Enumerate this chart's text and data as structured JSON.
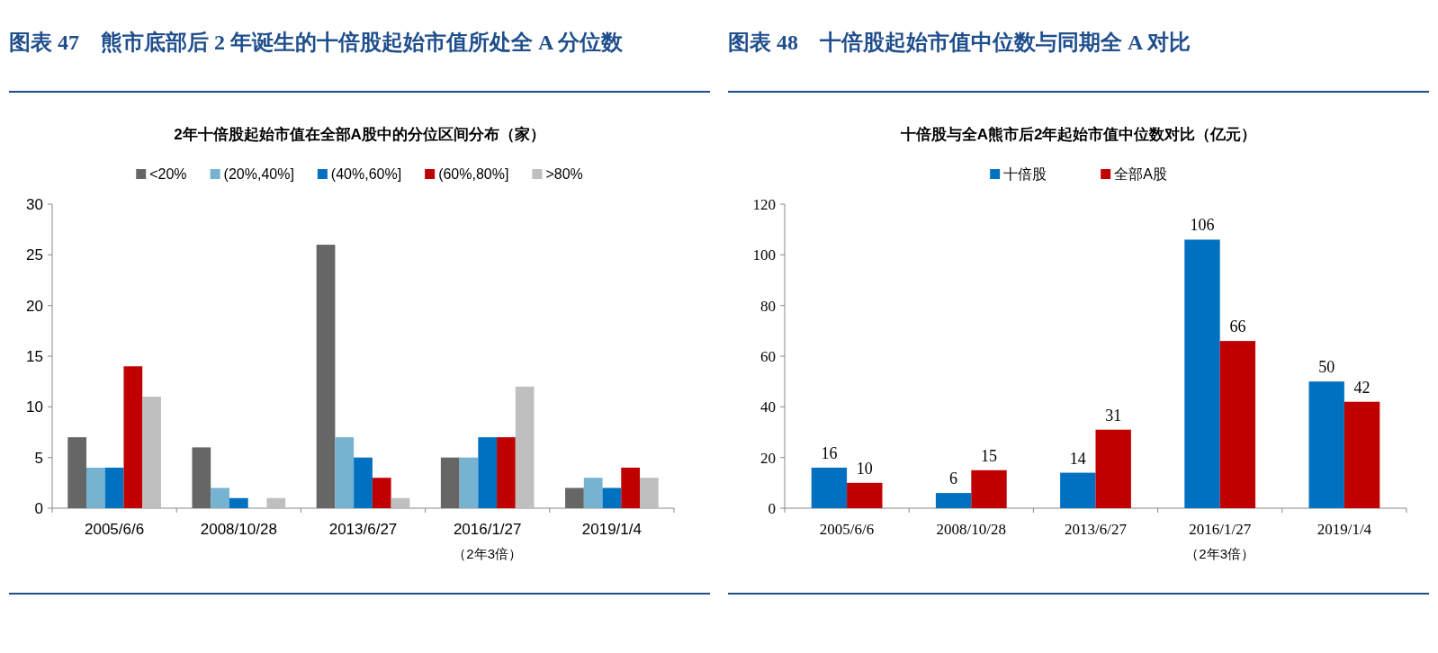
{
  "chart_data": [
    {
      "type": "bar",
      "title": "图表 47　熊市底部后 2 年诞生的十倍股起始市值所处全 A 分位数",
      "subtitle": "2年十倍股起始市值在全部A股中的分位区间分布（家）",
      "categories": [
        "2005/6/6",
        "2008/10/28",
        "2013/6/27",
        "2016/1/27",
        "2019/1/4"
      ],
      "series": [
        {
          "name": "<20%",
          "color": "#666666",
          "values": [
            7,
            6,
            26,
            5,
            2
          ]
        },
        {
          "name": "(20%,40%]",
          "color": "#75b3d1",
          "values": [
            4,
            2,
            7,
            5,
            3
          ]
        },
        {
          "name": "(40%,60%]",
          "color": "#0070c0",
          "values": [
            4,
            1,
            5,
            7,
            2
          ]
        },
        {
          "name": "(60%,80%]",
          "color": "#c00000",
          "values": [
            14,
            0,
            3,
            7,
            4
          ]
        },
        {
          "name": ">80%",
          "color": "#bfbfbf",
          "values": [
            11,
            1,
            1,
            12,
            3
          ]
        }
      ],
      "ylim": [
        0,
        30
      ],
      "yticks": [
        0,
        5,
        10,
        15,
        20,
        25,
        30
      ],
      "grid": false,
      "legend": "top",
      "annotations": [
        "（2年3倍）"
      ]
    },
    {
      "type": "bar",
      "title": "图表 48　十倍股起始市值中位数与同期全 A 对比",
      "subtitle": "十倍股与全A熊市后2年起始市值中位数对比（亿元）",
      "categories": [
        "2005/6/6",
        "2008/10/28",
        "2013/6/27",
        "2016/1/27",
        "2019/1/4"
      ],
      "series": [
        {
          "name": "十倍股",
          "color": "#0070c0",
          "values": [
            16,
            6,
            14,
            106,
            50
          ]
        },
        {
          "name": "全部A股",
          "color": "#c00000",
          "values": [
            10,
            15,
            31,
            66,
            42
          ]
        }
      ],
      "ylim": [
        0,
        120
      ],
      "yticks": [
        0,
        20,
        40,
        60,
        80,
        100,
        120
      ],
      "grid": false,
      "legend": "top",
      "data_labels": true,
      "annotations": [
        "（2年3倍）"
      ]
    }
  ]
}
